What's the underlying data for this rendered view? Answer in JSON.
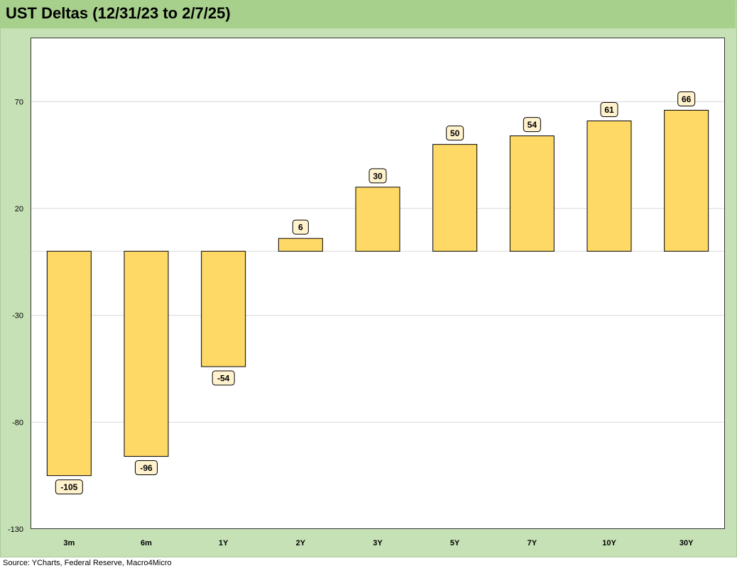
{
  "title": "UST Deltas (12/31/23 to 2/7/25)",
  "source": "Source: YCharts, Federal Reserve, Macro4Micro",
  "colors": {
    "frame_background": "#c7e1b6",
    "title_bar": "#a8d08d",
    "bar_fill": "#ffd966",
    "bar_stroke": "#000000",
    "label_fill": "#fff2cc",
    "gridline": "#d9d9d9"
  },
  "chart_data": {
    "type": "bar",
    "title": "UST Deltas (12/31/23 to 2/7/25)",
    "categories": [
      "3m",
      "6m",
      "1Y",
      "2Y",
      "3Y",
      "5Y",
      "7Y",
      "10Y",
      "30Y"
    ],
    "values": [
      -105,
      -96,
      -54,
      6,
      30,
      50,
      54,
      61,
      66
    ],
    "data_labels": [
      "-105",
      "-96",
      "-54",
      "6",
      "30",
      "50",
      "54",
      "61",
      "66"
    ],
    "ylim": [
      -130,
      100
    ],
    "yticks": [
      70,
      20,
      -30,
      -80,
      -130
    ],
    "ytick_labels": [
      "70",
      "20",
      "-30",
      "-80",
      "-130"
    ],
    "grid": true,
    "legend": "none"
  }
}
